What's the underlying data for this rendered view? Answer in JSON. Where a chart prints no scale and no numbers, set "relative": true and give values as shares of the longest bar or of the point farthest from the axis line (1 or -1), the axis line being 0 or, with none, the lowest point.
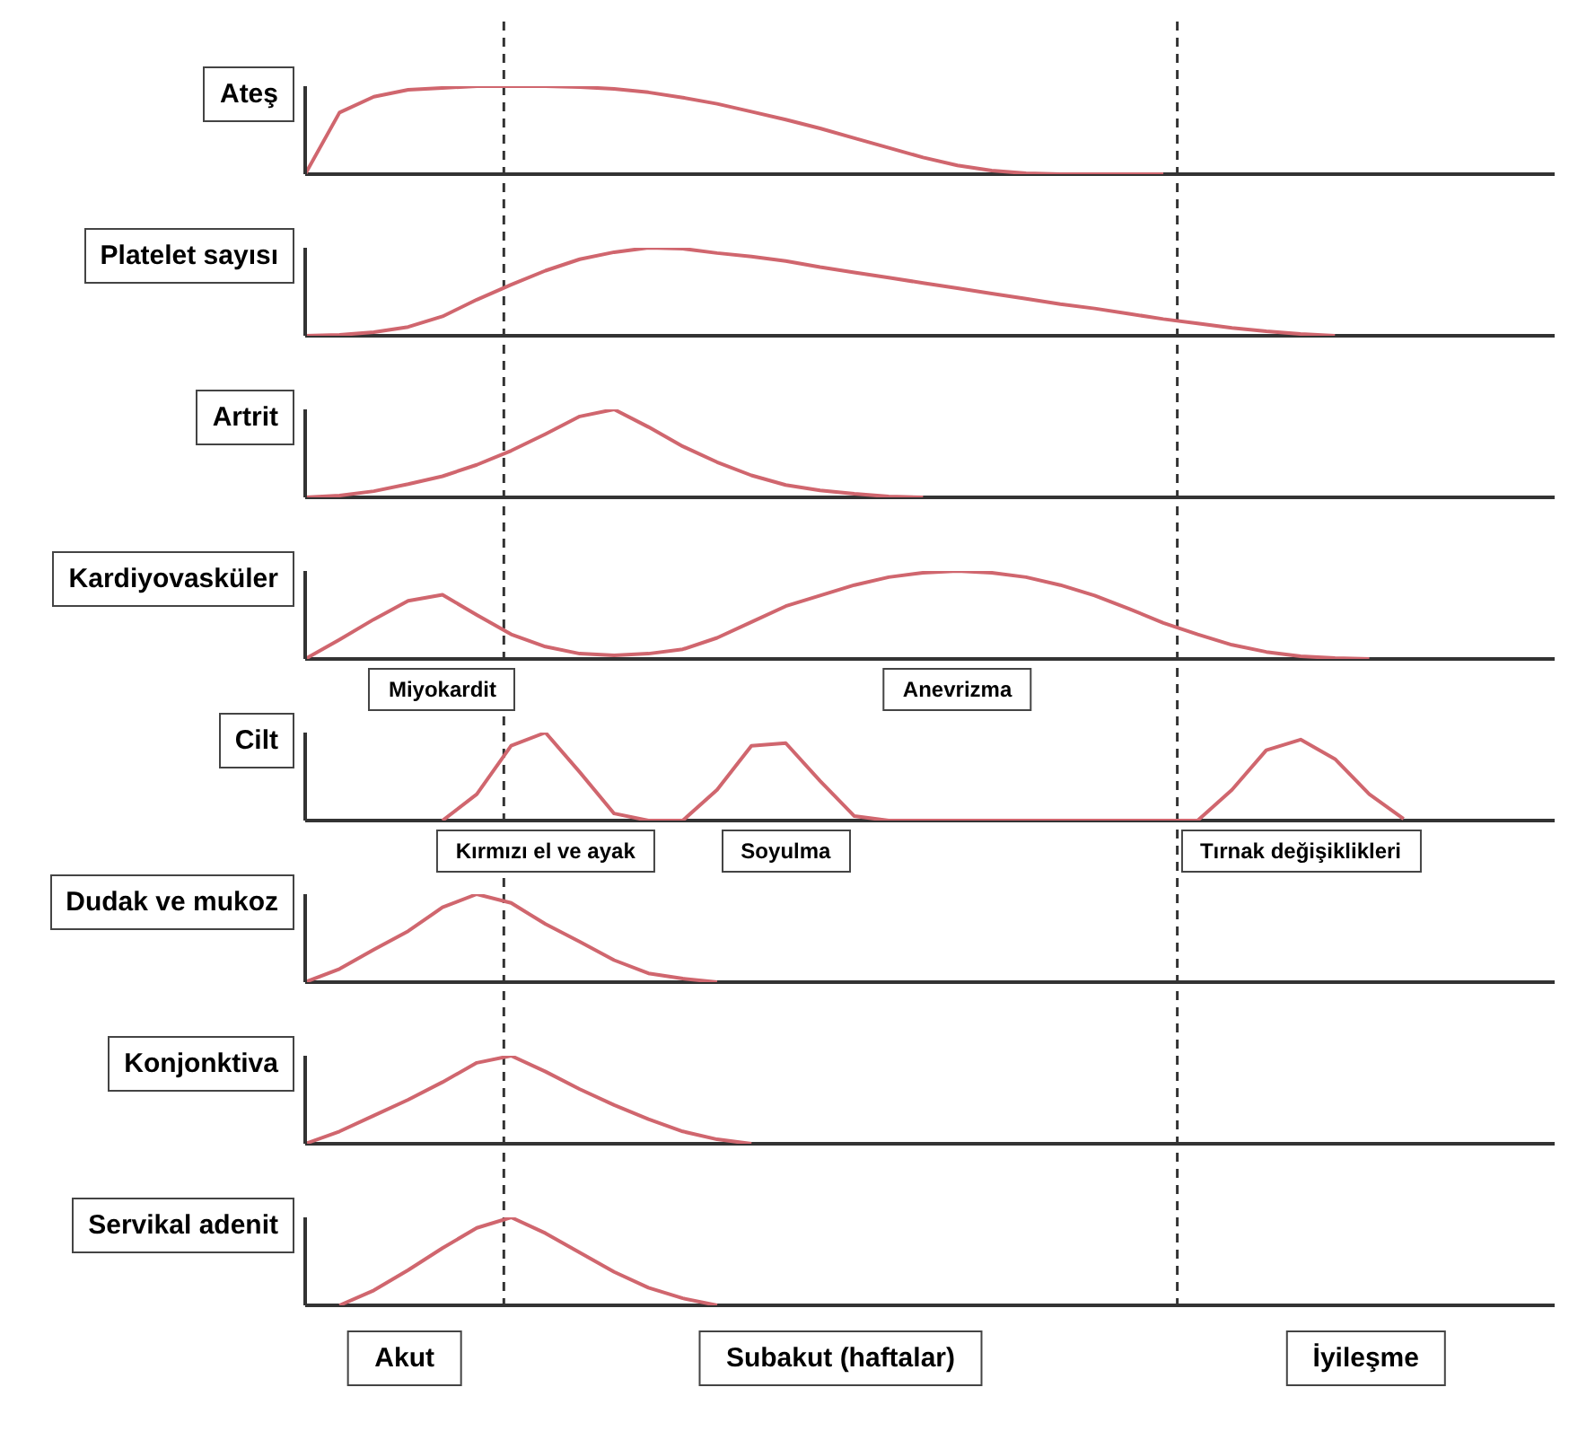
{
  "chart_data": [
    {
      "type": "line",
      "title": "Ateş",
      "relative": true,
      "categories": [
        null,
        null,
        null,
        null,
        null,
        null,
        null,
        null,
        null,
        null,
        null,
        null,
        null,
        null,
        null,
        null,
        null,
        null,
        null,
        null,
        null,
        null,
        null,
        null,
        null,
        null,
        null,
        null,
        null,
        null,
        null,
        null,
        null,
        null,
        null,
        null,
        null
      ],
      "color": "#d0666e",
      "values": [
        0,
        0.7,
        0.88,
        0.96,
        0.98,
        1,
        1,
        1,
        0.99,
        0.97,
        0.93,
        0.87,
        0.8,
        0.71,
        0.62,
        0.52,
        0.41,
        0.3,
        0.19,
        0.1,
        0.04,
        0.01,
        0,
        0,
        0,
        0,
        null,
        null,
        null,
        null,
        null,
        null,
        null,
        null,
        null,
        null,
        null
      ]
    },
    {
      "type": "line",
      "title": "Platelet sayısı",
      "relative": true,
      "categories": [
        null,
        null,
        null,
        null,
        null,
        null,
        null,
        null,
        null,
        null,
        null,
        null,
        null,
        null,
        null,
        null,
        null,
        null,
        null,
        null,
        null,
        null,
        null,
        null,
        null,
        null,
        null,
        null,
        null,
        null,
        null,
        null,
        null,
        null,
        null,
        null,
        null
      ],
      "color": "#d0666e",
      "values": [
        0,
        0.01,
        0.04,
        0.1,
        0.22,
        0.41,
        0.58,
        0.74,
        0.87,
        0.95,
        1,
        0.99,
        0.94,
        0.9,
        0.85,
        0.78,
        0.72,
        0.66,
        0.6,
        0.54,
        0.48,
        0.42,
        0.36,
        0.31,
        0.25,
        0.19,
        0.14,
        0.09,
        0.05,
        0.02,
        0,
        null,
        null,
        null,
        null,
        null,
        null
      ]
    },
    {
      "type": "line",
      "title": "Artrit",
      "relative": true,
      "categories": [
        null,
        null,
        null,
        null,
        null,
        null,
        null,
        null,
        null,
        null,
        null,
        null,
        null,
        null,
        null,
        null,
        null,
        null,
        null,
        null,
        null,
        null,
        null,
        null,
        null,
        null,
        null,
        null,
        null,
        null,
        null,
        null,
        null,
        null,
        null,
        null,
        null
      ],
      "color": "#d0666e",
      "values": [
        0,
        0.02,
        0.07,
        0.15,
        0.24,
        0.37,
        0.53,
        0.72,
        0.92,
        1,
        0.8,
        0.58,
        0.4,
        0.25,
        0.14,
        0.08,
        0.04,
        0.01,
        0,
        null,
        null,
        null,
        null,
        null,
        null,
        null,
        null,
        null,
        null,
        null,
        null,
        null,
        null,
        null,
        null,
        null,
        null
      ]
    },
    {
      "type": "line",
      "title": "Kardiyovasküler",
      "relative": true,
      "categories": [
        null,
        null,
        null,
        null,
        null,
        null,
        null,
        null,
        null,
        null,
        null,
        null,
        null,
        null,
        null,
        null,
        null,
        null,
        null,
        null,
        null,
        null,
        null,
        null,
        null,
        null,
        null,
        null,
        null,
        null,
        null,
        null,
        null,
        null,
        null,
        null,
        null
      ],
      "color": "#d0666e",
      "values": [
        0,
        0.22,
        0.45,
        0.66,
        0.73,
        0.5,
        0.28,
        0.14,
        0.06,
        0.04,
        0.06,
        0.11,
        0.24,
        0.42,
        0.6,
        0.72,
        0.84,
        0.93,
        0.98,
        1,
        0.98,
        0.93,
        0.84,
        0.72,
        0.57,
        0.41,
        0.28,
        0.16,
        0.08,
        0.03,
        0.01,
        0,
        null,
        null,
        null,
        null,
        null
      ],
      "annotations": [
        "Miyokardit",
        "Anevrizma"
      ]
    },
    {
      "type": "line",
      "title": "Cilt",
      "relative": true,
      "categories": [
        null,
        null,
        null,
        null,
        null,
        null,
        null,
        null,
        null,
        null,
        null,
        null,
        null,
        null,
        null,
        null,
        null,
        null,
        null,
        null,
        null,
        null,
        null,
        null,
        null,
        null,
        null,
        null,
        null,
        null,
        null,
        null,
        null,
        null,
        null,
        null,
        null
      ],
      "color": "#d0666e",
      "values": [
        null,
        null,
        null,
        null,
        0,
        0.3,
        0.85,
        1,
        0.55,
        0.08,
        0,
        0,
        0.35,
        0.85,
        0.88,
        0.45,
        0.05,
        0,
        0,
        0,
        0,
        0,
        0,
        0,
        0,
        0,
        0,
        0.35,
        0.8,
        0.92,
        0.7,
        0.3,
        0.02,
        null,
        null,
        null,
        null
      ],
      "annotations": [
        "Kırmızı el ve ayak",
        "Soyulma",
        "Tırnak değişiklikleri"
      ]
    },
    {
      "type": "line",
      "title": "Dudak ve mukoz",
      "relative": true,
      "categories": [
        null,
        null,
        null,
        null,
        null,
        null,
        null,
        null,
        null,
        null,
        null,
        null,
        null,
        null,
        null,
        null,
        null,
        null,
        null,
        null,
        null,
        null,
        null,
        null,
        null,
        null,
        null,
        null,
        null,
        null,
        null,
        null,
        null,
        null,
        null,
        null,
        null
      ],
      "color": "#d0666e",
      "values": [
        0,
        0.15,
        0.37,
        0.58,
        0.85,
        1,
        0.9,
        0.66,
        0.46,
        0.25,
        0.1,
        0.04,
        0,
        null,
        null,
        null,
        null,
        null,
        null,
        null,
        null,
        null,
        null,
        null,
        null,
        null,
        null,
        null,
        null,
        null,
        null,
        null,
        null,
        null,
        null,
        null,
        null
      ]
    },
    {
      "type": "line",
      "title": "Konjonktiva",
      "relative": true,
      "categories": [
        null,
        null,
        null,
        null,
        null,
        null,
        null,
        null,
        null,
        null,
        null,
        null,
        null,
        null,
        null,
        null,
        null,
        null,
        null,
        null,
        null,
        null,
        null,
        null,
        null,
        null,
        null,
        null,
        null,
        null,
        null,
        null,
        null,
        null,
        null,
        null,
        null
      ],
      "color": "#d0666e",
      "values": [
        0,
        0.14,
        0.32,
        0.5,
        0.7,
        0.92,
        1,
        0.82,
        0.62,
        0.44,
        0.28,
        0.14,
        0.05,
        0,
        null,
        null,
        null,
        null,
        null,
        null,
        null,
        null,
        null,
        null,
        null,
        null,
        null,
        null,
        null,
        null,
        null,
        null,
        null,
        null,
        null,
        null,
        null
      ]
    },
    {
      "type": "line",
      "title": "Servikal adenit",
      "relative": true,
      "categories": [
        null,
        null,
        null,
        null,
        null,
        null,
        null,
        null,
        null,
        null,
        null,
        null,
        null,
        null,
        null,
        null,
        null,
        null,
        null,
        null,
        null,
        null,
        null,
        null,
        null,
        null,
        null,
        null,
        null,
        null,
        null,
        null,
        null,
        null,
        null,
        null,
        null
      ],
      "color": "#d0666e",
      "values": [
        null,
        0,
        0.17,
        0.4,
        0.65,
        0.88,
        1,
        0.82,
        0.6,
        0.38,
        0.2,
        0.08,
        0,
        null,
        null,
        null,
        null,
        null,
        null,
        null,
        null,
        null,
        null,
        null,
        null,
        null,
        null,
        null,
        null,
        null,
        null,
        null,
        null,
        null,
        null,
        null,
        null
      ],
      "annotations": [
        "Akut",
        "Subakut (haftalar)",
        "İyileşme"
      ]
    }
  ]
}
